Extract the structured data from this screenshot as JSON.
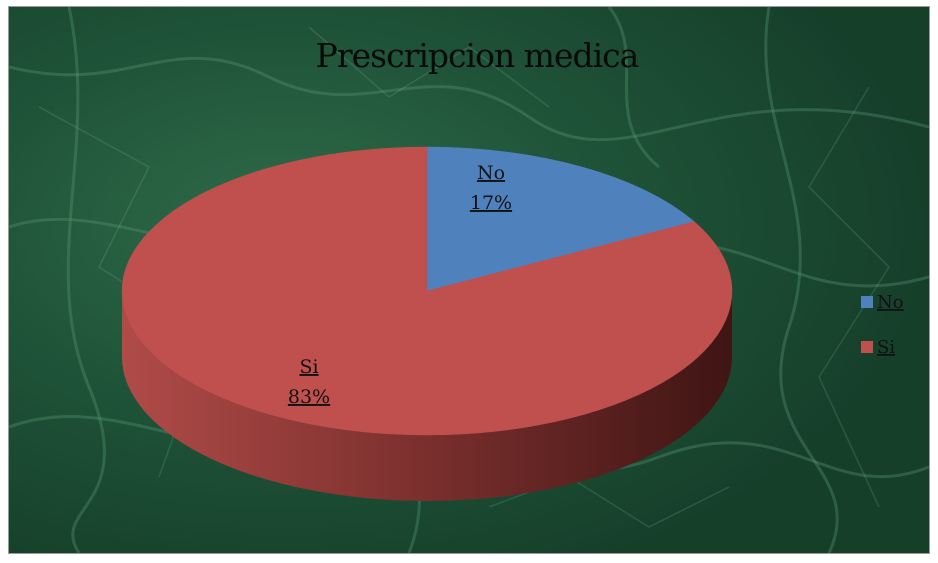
{
  "chart_data": {
    "type": "pie",
    "title": "Prescripcion medica",
    "categories": [
      "No",
      "Si"
    ],
    "values": [
      17,
      83
    ],
    "value_labels": [
      "17%",
      "83%"
    ],
    "colors": [
      "#4F81BD",
      "#C0504D"
    ],
    "legend_position": "right",
    "style": "3d",
    "background": "green-marble"
  }
}
